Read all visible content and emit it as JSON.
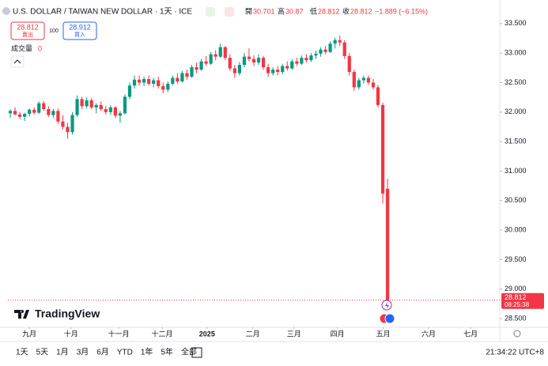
{
  "chart_data": {
    "type": "candlestick",
    "title": "U.S. DOLLAR / TAIWAN NEW DOLLAR · 1天 · ICE",
    "ohlc_names": [
      "開",
      "高",
      "低",
      "收"
    ],
    "change": "−1.889 (−6.15%)",
    "sell_price": "28.812",
    "sell_label": "賣出",
    "spread": "100",
    "buy_price": "28.912",
    "buy_label": "買入",
    "volume_label": "成交量",
    "volume_value": "0",
    "brand": "TradingView",
    "countdown": "08:25:38",
    "timeframes": [
      "1天",
      "5天",
      "1月",
      "3月",
      "6月",
      "YTD",
      "1年",
      "5年",
      "全部"
    ],
    "clock": "21:34:22 UTC+8",
    "up_color": "#089981",
    "down_color": "#f23645",
    "open": [
      31.98,
      32.02,
      31.96,
      31.92,
      31.97,
      32.04,
      31.99,
      32.15,
      32.05,
      31.95,
      32.02,
      31.84,
      31.75,
      31.66,
      31.95,
      32.22,
      32.1,
      32.2,
      32.08,
      32.12,
      32.05,
      32.0,
      32.08,
      31.94,
      31.98,
      32.26,
      32.45,
      32.55,
      32.5,
      32.56,
      32.48,
      32.54,
      32.44,
      32.38,
      32.48,
      32.58,
      32.52,
      32.66,
      32.6,
      32.76,
      32.72,
      32.86,
      32.82,
      32.98,
      32.94,
      33.1,
      32.92,
      32.74,
      32.66,
      32.8,
      32.94,
      32.9,
      32.84,
      32.92,
      32.76,
      32.66,
      32.72,
      32.68,
      32.78,
      32.74,
      32.86,
      32.82,
      32.92,
      32.88,
      32.96,
      32.99,
      33.06,
      33.02,
      33.16,
      33.22,
      33.18,
      32.95,
      32.68,
      32.42,
      32.54,
      32.58,
      32.5,
      32.42,
      32.12,
      30.701
    ],
    "high": [
      32.05,
      32.08,
      32.0,
      31.99,
      32.06,
      32.08,
      32.18,
      32.19,
      32.1,
      32.05,
      32.06,
      31.95,
      31.82,
      32.0,
      32.28,
      32.26,
      32.25,
      32.24,
      32.15,
      32.18,
      32.1,
      32.12,
      32.1,
      32.02,
      32.3,
      32.5,
      32.62,
      32.62,
      32.6,
      32.62,
      32.58,
      32.6,
      32.5,
      32.52,
      32.62,
      32.66,
      32.7,
      32.72,
      32.8,
      32.84,
      32.9,
      32.95,
      33.02,
      33.05,
      33.16,
      33.12,
      32.98,
      32.8,
      32.85,
      33.0,
      33.08,
      32.96,
      32.98,
      32.95,
      32.82,
      32.76,
      32.78,
      32.82,
      32.86,
      32.9,
      32.92,
      32.96,
      32.98,
      33.0,
      33.04,
      33.1,
      33.12,
      33.2,
      33.26,
      33.3,
      33.22,
      33.0,
      32.72,
      32.58,
      32.62,
      32.62,
      32.56,
      32.46,
      32.16,
      30.87
    ],
    "low": [
      31.9,
      31.95,
      31.88,
      31.85,
      31.93,
      31.96,
      31.97,
      32.02,
      31.92,
      31.9,
      31.8,
      31.7,
      31.55,
      31.62,
      31.92,
      32.05,
      32.06,
      32.05,
      31.98,
      32.02,
      31.96,
      31.95,
      31.9,
      31.82,
      31.96,
      32.22,
      32.4,
      32.45,
      32.44,
      32.45,
      32.42,
      32.4,
      32.32,
      32.34,
      32.45,
      32.48,
      32.5,
      32.55,
      32.58,
      32.66,
      32.7,
      32.78,
      32.8,
      32.88,
      32.92,
      32.88,
      32.7,
      32.58,
      32.62,
      32.76,
      32.86,
      32.78,
      32.8,
      32.72,
      32.6,
      32.62,
      32.62,
      32.64,
      32.7,
      32.72,
      32.78,
      32.8,
      32.84,
      32.85,
      32.9,
      32.94,
      32.98,
      33.0,
      33.08,
      33.12,
      32.9,
      32.62,
      32.36,
      32.38,
      32.48,
      32.46,
      32.38,
      32.08,
      30.45,
      28.812
    ],
    "close": [
      32.02,
      31.96,
      31.92,
      31.97,
      32.04,
      31.99,
      32.15,
      32.05,
      31.95,
      32.02,
      31.84,
      31.75,
      31.66,
      31.95,
      32.22,
      32.1,
      32.2,
      32.08,
      32.12,
      32.05,
      32.0,
      32.08,
      31.94,
      31.98,
      32.26,
      32.45,
      32.55,
      32.5,
      32.56,
      32.48,
      32.54,
      32.44,
      32.38,
      32.48,
      32.58,
      32.52,
      32.66,
      32.6,
      32.76,
      32.72,
      32.86,
      32.82,
      32.98,
      32.94,
      33.1,
      32.92,
      32.74,
      32.66,
      32.8,
      32.94,
      32.9,
      32.84,
      32.92,
      32.76,
      32.66,
      32.72,
      32.68,
      32.78,
      32.74,
      32.86,
      32.82,
      32.92,
      32.88,
      32.96,
      32.99,
      33.06,
      33.02,
      33.16,
      33.22,
      33.18,
      32.95,
      32.68,
      32.42,
      32.54,
      32.58,
      32.5,
      32.42,
      32.12,
      30.62,
      28.812
    ],
    "xlim": [
      -0.5,
      102.5
    ],
    "xticks": [
      {
        "value": 4,
        "label": "九月"
      },
      {
        "value": 12.7,
        "label": "十月"
      },
      {
        "value": 22.7,
        "label": "十一月"
      },
      {
        "value": 31.8,
        "label": "十二月"
      },
      {
        "value": 41.2,
        "label": "2025"
      },
      {
        "value": 50.8,
        "label": "二月"
      },
      {
        "value": 59.4,
        "label": "三月"
      },
      {
        "value": 68.5,
        "label": "四月"
      },
      {
        "value": 78.1,
        "label": "五月"
      },
      {
        "value": 87.6,
        "label": "六月"
      },
      {
        "value": 96.4,
        "label": "七月"
      }
    ],
    "ylim": [
      28.38,
      33.9
    ],
    "yticks": [
      {
        "value": 33.5,
        "label": "33.500"
      },
      {
        "value": 33,
        "label": "33.000"
      },
      {
        "value": 32.5,
        "label": "32.500"
      },
      {
        "value": 32,
        "label": "32.000"
      },
      {
        "value": 31.5,
        "label": "31.500"
      },
      {
        "value": 31,
        "label": "31.000"
      },
      {
        "value": 30.5,
        "label": "30.500"
      },
      {
        "value": 30,
        "label": "30.000"
      },
      {
        "value": 29.5,
        "label": "29.500"
      },
      {
        "value": 29,
        "label": "29.000"
      },
      {
        "value": 28.5,
        "label": "28.500"
      }
    ]
  }
}
